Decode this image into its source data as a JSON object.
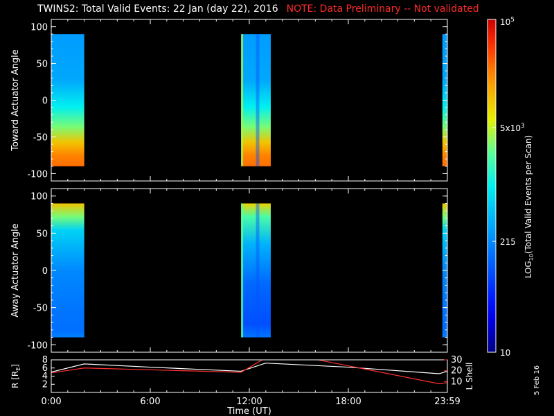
{
  "title": {
    "main": "TWINS2: Total Valid Events: 22 Jan (day  22), 2016",
    "note": "NOTE: Data Preliminary -- Not validated"
  },
  "stamp": "5 Feb 16",
  "chart_data": [
    {
      "type": "heatmap",
      "panel": "toward",
      "ylabel": "Toward Actuator Angle",
      "ylim": [
        -110,
        110
      ],
      "yticks": [
        100,
        50,
        0,
        -50,
        -100
      ],
      "xlim": [
        0,
        24
      ],
      "xticks": [
        "0:00",
        "6:00",
        "12:00",
        "18:00",
        "23:59"
      ],
      "data_intervals_hours": [
        [
          0.0,
          2.0
        ],
        [
          11.5,
          13.3
        ],
        [
          23.7,
          24.0
        ]
      ],
      "angle_range": [
        -90,
        90
      ],
      "description": "counts increase toward negative angles (orange near -80)"
    },
    {
      "type": "heatmap",
      "panel": "away",
      "ylabel": "Away Actuator Angle",
      "ylim": [
        -110,
        110
      ],
      "yticks": [
        100,
        50,
        0,
        -50,
        -100
      ],
      "xlim": [
        0,
        24
      ],
      "xticks": [
        "0:00",
        "6:00",
        "12:00",
        "18:00",
        "23:59"
      ],
      "data_intervals_hours": [
        [
          0.0,
          2.0
        ],
        [
          11.5,
          13.3
        ],
        [
          23.7,
          24.0
        ]
      ],
      "angle_range": [
        -90,
        90
      ],
      "description": "counts highest near +85 (yellow/orange), blue elsewhere"
    },
    {
      "type": "line",
      "panel": "ephemeris",
      "ylabel": "R [R",
      "ylabel_sub": "E",
      "ylabel_end": "]",
      "y2label": "L Shell",
      "ylim": [
        0,
        8
      ],
      "yticks": [
        2,
        4,
        6,
        8
      ],
      "y2lim": [
        0,
        30
      ],
      "y2ticks": [
        10,
        20,
        30
      ],
      "xlabel": "Time (UT)",
      "xlim": [
        0,
        24
      ],
      "xticks": [
        "0:00",
        "6:00",
        "12:00",
        "18:00",
        "23:59"
      ],
      "series": [
        {
          "color": "#ffffff",
          "x": [
            0,
            2,
            6,
            11.5,
            13,
            18,
            23.5,
            24
          ],
          "y": [
            5.0,
            7.0,
            6.2,
            5.2,
            7.2,
            6.2,
            4.6,
            5.2
          ]
        },
        {
          "color": "#ff3030",
          "x": [
            0,
            2,
            11.5,
            13,
            13.5,
            15.5,
            23.5,
            24
          ],
          "y": [
            18,
            22.5,
            18.5,
            32,
            36,
            32,
            8,
            9
          ]
        }
      ]
    },
    {
      "type": "colorbar",
      "label": "LOG",
      "label_sub": "10",
      "label_rest": "(Total Valid  Events per Scan)",
      "ticks": [
        {
          "value": 10,
          "label": "10"
        },
        {
          "value": 215,
          "label": "215"
        },
        {
          "value": 5000,
          "label": "5x10",
          "sup": "3"
        },
        {
          "value": 100000,
          "label": "10",
          "sup": "5"
        }
      ],
      "range": [
        10,
        100000
      ]
    }
  ],
  "colors": {
    "background": "#000000",
    "axis": "#ffffff",
    "note": "#ff2a2a",
    "lshell": "#ff3030"
  }
}
